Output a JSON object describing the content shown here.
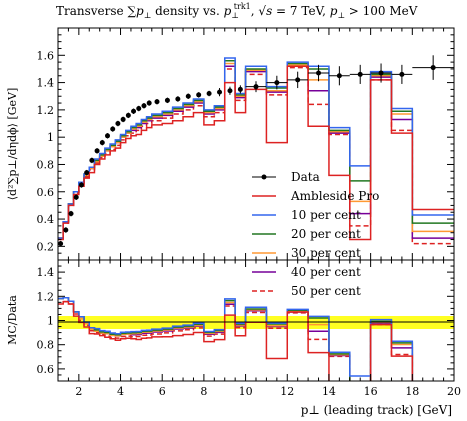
{
  "chart_data": {
    "type": "line",
    "title": "Transverse ∑p⊥ density vs. p⊥^trk1, √s = 7 TeV, p⊥ > 100 MeV",
    "title_parts": {
      "a": "Transverse ∑",
      "b": "p",
      "b_sub": "⊥",
      "c": " density vs. ",
      "d": "p",
      "d_sub": "⊥",
      "d_sup": "trk1",
      "e": ", √",
      "f": "s",
      "g": " = 7 TeV, ",
      "h": "p",
      "h_sub": "⊥",
      "i": " > 100 MeV"
    },
    "xlabel": "p⊥ (leading track) [GeV]",
    "ylabel": "⟨d²∑p⊥/dηdϕ⟩ [GeV]",
    "ratio_ylabel": "MC/Data",
    "xlim": [
      1,
      20
    ],
    "ylim": [
      0.1,
      1.8
    ],
    "ratio_ylim": [
      0.5,
      1.5
    ],
    "x_ticks": [
      2,
      4,
      6,
      8,
      10,
      12,
      14,
      16,
      18,
      20
    ],
    "x_tick_labels": [
      "2",
      "4",
      "6",
      "8",
      "10",
      "12",
      "14",
      "16",
      "18",
      "20"
    ],
    "y_ticks": [
      0.2,
      0.4,
      0.6,
      0.8,
      1.0,
      1.2,
      1.4,
      1.6
    ],
    "y_tick_labels": [
      "0.2",
      "0.4",
      "0.6",
      "0.8",
      "1",
      "1.2",
      "1.4",
      "1.6"
    ],
    "ratio_y_ticks": [
      0.6,
      0.8,
      1.0,
      1.2,
      1.4
    ],
    "ratio_y_tick_labels": [
      "0.6",
      "0.8",
      "1",
      "1.2",
      "1.4"
    ],
    "legend_position": "right-center",
    "bin_edges": [
      1.0,
      1.25,
      1.5,
      1.75,
      2.0,
      2.25,
      2.5,
      2.75,
      3.0,
      3.25,
      3.5,
      3.75,
      4.0,
      4.25,
      4.5,
      4.75,
      5.0,
      5.25,
      5.5,
      6.0,
      6.5,
      7.0,
      7.5,
      8.0,
      8.5,
      9.0,
      9.5,
      10.0,
      11.0,
      12.0,
      13.0,
      14.0,
      15.0,
      16.0,
      17.0,
      18.0,
      20.0
    ],
    "data": {
      "name": "Data",
      "color": "#000000",
      "x": [
        1.125,
        1.375,
        1.625,
        1.875,
        2.125,
        2.375,
        2.625,
        2.875,
        3.125,
        3.375,
        3.625,
        3.875,
        4.125,
        4.375,
        4.625,
        4.875,
        5.125,
        5.375,
        5.75,
        6.25,
        6.75,
        7.25,
        7.75,
        8.25,
        8.75,
        9.25,
        9.75,
        10.5,
        11.5,
        12.5,
        13.5,
        14.5,
        15.5,
        16.5,
        17.5,
        19.0
      ],
      "y": [
        0.22,
        0.32,
        0.44,
        0.56,
        0.65,
        0.74,
        0.83,
        0.9,
        0.96,
        1.01,
        1.06,
        1.1,
        1.13,
        1.16,
        1.19,
        1.21,
        1.23,
        1.25,
        1.26,
        1.27,
        1.28,
        1.3,
        1.31,
        1.32,
        1.33,
        1.34,
        1.35,
        1.37,
        1.4,
        1.42,
        1.47,
        1.45,
        1.46,
        1.47,
        1.46,
        1.51
      ],
      "yerr": [
        0.02,
        0.02,
        0.02,
        0.02,
        0.02,
        0.02,
        0.02,
        0.02,
        0.02,
        0.02,
        0.02,
        0.02,
        0.02,
        0.02,
        0.02,
        0.02,
        0.02,
        0.02,
        0.02,
        0.02,
        0.02,
        0.02,
        0.02,
        0.02,
        0.03,
        0.03,
        0.03,
        0.04,
        0.05,
        0.06,
        0.06,
        0.07,
        0.07,
        0.07,
        0.07,
        0.09
      ]
    },
    "series": [
      {
        "name": "Ambleside Pro",
        "color": "#dd2222",
        "dash": false,
        "values": [
          0.25,
          0.37,
          0.5,
          0.58,
          0.64,
          0.7,
          0.74,
          0.8,
          0.84,
          0.87,
          0.9,
          0.92,
          0.96,
          0.99,
          1.01,
          1.02,
          1.05,
          1.07,
          1.09,
          1.1,
          1.12,
          1.15,
          1.18,
          1.09,
          1.12,
          1.4,
          1.18,
          1.35,
          0.96,
          1.52,
          1.08,
          0.72,
          0.25,
          1.42,
          1.03,
          0.47
        ]
      },
      {
        "name": "10 per cent",
        "color": "#3366ee",
        "dash": false,
        "values": [
          0.26,
          0.38,
          0.51,
          0.6,
          0.67,
          0.73,
          0.78,
          0.84,
          0.88,
          0.92,
          0.95,
          0.98,
          1.02,
          1.05,
          1.08,
          1.1,
          1.13,
          1.15,
          1.17,
          1.19,
          1.22,
          1.25,
          1.28,
          1.2,
          1.23,
          1.58,
          1.32,
          1.52,
          1.37,
          1.55,
          1.52,
          1.07,
          0.79,
          1.48,
          1.21,
          0.43
        ]
      },
      {
        "name": "20 per cent",
        "color": "#227722",
        "dash": false,
        "values": [
          0.26,
          0.38,
          0.51,
          0.6,
          0.67,
          0.73,
          0.78,
          0.83,
          0.87,
          0.91,
          0.94,
          0.97,
          1.01,
          1.04,
          1.07,
          1.09,
          1.12,
          1.14,
          1.16,
          1.18,
          1.21,
          1.24,
          1.27,
          1.19,
          1.22,
          1.56,
          1.31,
          1.5,
          1.36,
          1.54,
          1.5,
          1.05,
          0.68,
          1.46,
          1.19,
          0.37
        ]
      },
      {
        "name": "30 per cent",
        "color": "#ff9933",
        "dash": false,
        "values": [
          0.26,
          0.38,
          0.51,
          0.6,
          0.66,
          0.72,
          0.77,
          0.82,
          0.86,
          0.9,
          0.93,
          0.96,
          1.0,
          1.03,
          1.06,
          1.08,
          1.11,
          1.13,
          1.15,
          1.17,
          1.2,
          1.23,
          1.26,
          1.18,
          1.21,
          1.54,
          1.3,
          1.49,
          1.34,
          1.53,
          1.42,
          1.04,
          0.53,
          1.45,
          1.17,
          0.31
        ]
      },
      {
        "name": "40 per cent",
        "color": "#770099",
        "dash": false,
        "values": [
          0.26,
          0.38,
          0.51,
          0.6,
          0.66,
          0.72,
          0.77,
          0.82,
          0.86,
          0.9,
          0.93,
          0.96,
          1.0,
          1.03,
          1.05,
          1.07,
          1.1,
          1.12,
          1.14,
          1.16,
          1.19,
          1.22,
          1.25,
          1.17,
          1.2,
          1.52,
          1.29,
          1.48,
          1.33,
          1.52,
          1.34,
          1.03,
          0.44,
          1.44,
          1.13,
          0.26
        ]
      },
      {
        "name": "50 per cent",
        "color": "#dd2222",
        "dash": true,
        "values": [
          0.26,
          0.37,
          0.5,
          0.59,
          0.65,
          0.71,
          0.76,
          0.81,
          0.85,
          0.88,
          0.91,
          0.94,
          0.98,
          1.01,
          1.03,
          1.05,
          1.08,
          1.1,
          1.12,
          1.14,
          1.17,
          1.2,
          1.23,
          1.15,
          1.18,
          1.5,
          1.27,
          1.46,
          1.31,
          1.51,
          1.24,
          1.02,
          0.35,
          1.42,
          1.05,
          0.22
        ]
      }
    ]
  }
}
